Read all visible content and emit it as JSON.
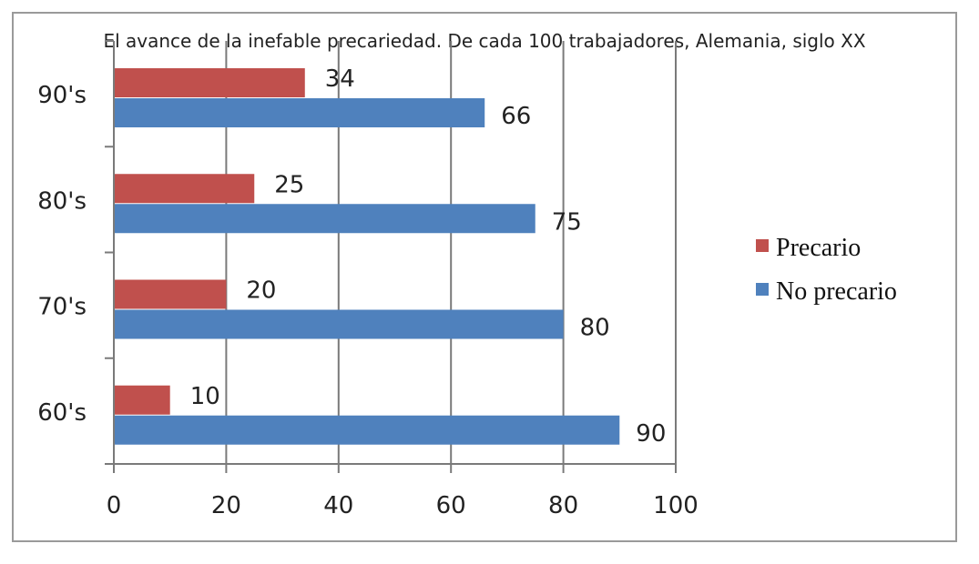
{
  "chart_data": {
    "type": "bar",
    "orientation": "horizontal",
    "title": "El avance de la inefable precariedad. De cada 100 trabajadores, Alemania, siglo XX",
    "categories": [
      "60's",
      "70's",
      "80's",
      "90's"
    ],
    "series": [
      {
        "name": "Precario",
        "values": [
          10,
          20,
          25,
          34
        ],
        "color": "#c0504d"
      },
      {
        "name": "No precario",
        "values": [
          90,
          80,
          75,
          66
        ],
        "color": "#4f81bd"
      }
    ],
    "xlim": [
      0,
      100
    ],
    "xticks": [
      0,
      20,
      40,
      60,
      80,
      100
    ],
    "grid": true,
    "legend": "right",
    "data_labels": true
  }
}
